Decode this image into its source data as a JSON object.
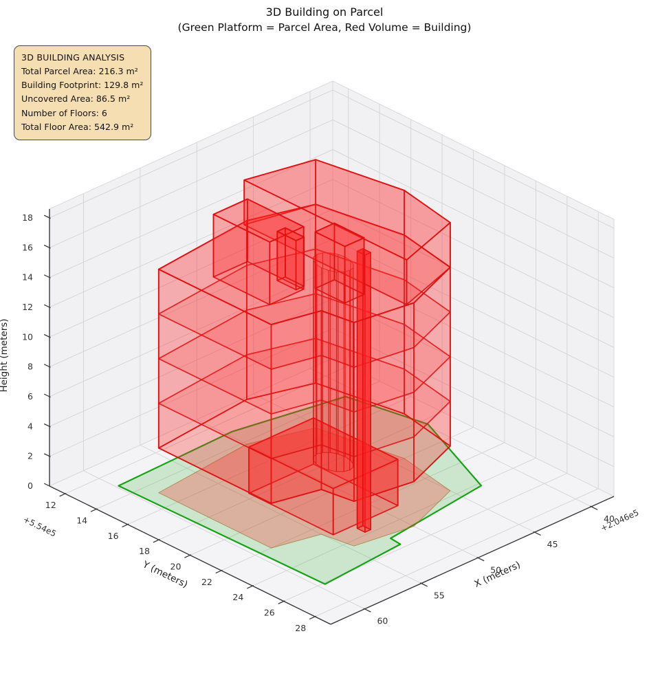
{
  "title": {
    "line1": "3D Building on Parcel",
    "line2": "(Green Platform = Parcel Area, Red Volume = Building)"
  },
  "info_box": {
    "heading": "3D BUILDING ANALYSIS",
    "lines": [
      "Total Parcel Area: 216.3 m²",
      "Building Footprint: 129.8 m²",
      "Uncovered Area: 86.5 m²",
      "Number of Floors: 6",
      "Total Floor Area: 542.9 m²"
    ]
  },
  "chart_data": {
    "type": "3d-building-volume",
    "title": "3D Building on Parcel",
    "subtitle": "(Green Platform = Parcel Area, Red Volume = Building)",
    "axes": {
      "x": {
        "label": "X (meters)",
        "ticks": [
          40,
          45,
          50,
          55,
          60
        ],
        "offset_label": "+2.046e5",
        "range": [
          38,
          63
        ]
      },
      "y": {
        "label": "Y (meters)",
        "ticks": [
          12,
          14,
          16,
          18,
          20,
          22,
          24,
          26,
          28
        ],
        "offset_label": "+5.54e5",
        "range": [
          11,
          29
        ]
      },
      "z": {
        "label": "Height (meters)",
        "ticks": [
          0,
          2,
          4,
          6,
          8,
          10,
          12,
          14,
          16,
          18
        ],
        "range": [
          0,
          18.6
        ]
      }
    },
    "stats": {
      "total_parcel_area_m2": 216.3,
      "building_footprint_m2": 129.8,
      "uncovered_area_m2": 86.5,
      "number_of_floors": 6,
      "total_floor_area_m2": 542.9
    },
    "parcel_polygon": [
      [
        59.8,
        13.1
      ],
      [
        59.5,
        26.1
      ],
      [
        52.3,
        25.7
      ],
      [
        52.2,
        25.0
      ],
      [
        43.1,
        24.2
      ],
      [
        39.8,
        18.4
      ],
      [
        41.0,
        14.0
      ],
      [
        49.5,
        12.9
      ]
    ],
    "building": {
      "main_footprint": [
        [
          58.6,
          14.8
        ],
        [
          58.6,
          22.0
        ],
        [
          55.0,
          22.6
        ],
        [
          54.6,
          24.4
        ],
        [
          50.0,
          24.9
        ],
        [
          45.0,
          23.6
        ],
        [
          44.1,
          20.0
        ],
        [
          45.3,
          15.2
        ],
        [
          50.0,
          14.2
        ]
      ],
      "floor_levels": [
        3,
        6,
        9,
        12
      ],
      "base_z": 3,
      "top_z": 15,
      "upper_floor": {
        "footprint": [
          [
            50.5,
            24.8
          ],
          [
            45.0,
            23.6
          ],
          [
            44.1,
            20.0
          ],
          [
            45.3,
            15.2
          ],
          [
            50.5,
            14.4
          ]
        ],
        "z0": 15,
        "z1": 18
      },
      "ground_box": {
        "footprint": [
          [
            54.5,
            17.6
          ],
          [
            54.5,
            23.0
          ],
          [
            48.8,
            23.0
          ],
          [
            48.8,
            17.6
          ]
        ],
        "z0": 0,
        "z1": 3.1
      },
      "roof_boxes": [
        {
          "footprint": [
            [
              56.8,
              17.0
            ],
            [
              56.8,
              20.6
            ],
            [
              53.8,
              20.6
            ],
            [
              53.8,
              17.0
            ]
          ],
          "z0": 15,
          "z1": 19.2
        },
        {
          "footprint": [
            [
              53.2,
              20.9
            ],
            [
              53.2,
              22.8
            ],
            [
              51.5,
              22.8
            ],
            [
              51.5,
              20.9
            ]
          ],
          "z0": 15,
          "z1": 18.8
        },
        {
          "footprint": [
            [
              54.2,
              19.2
            ],
            [
              54.2,
              20.4
            ],
            [
              53.5,
              20.4
            ],
            [
              53.5,
              19.2
            ]
          ],
          "z0": 15,
          "z1": 18.3
        }
      ],
      "tower": {
        "center": [
          51.6,
          20.9
        ],
        "radius": 1.05,
        "z0": 2.8,
        "z1": 16.2,
        "facets": 16
      },
      "column": {
        "footprint": [
          [
            52.8,
            23.3
          ],
          [
            52.8,
            23.8
          ],
          [
            52.3,
            23.8
          ],
          [
            52.3,
            23.3
          ]
        ],
        "z0": 0,
        "z1": 18.6
      }
    },
    "colors": {
      "building_face": "#ff2222",
      "building_edge": "#dd1111",
      "parcel_face": "#3db83d",
      "parcel_edge": "#17a317",
      "pane": "#f1f1f3",
      "grid": "#d6d6d6",
      "spine": "#3a3a3a",
      "tick_text": "#333333"
    },
    "legend_position": "none",
    "grid": true
  }
}
